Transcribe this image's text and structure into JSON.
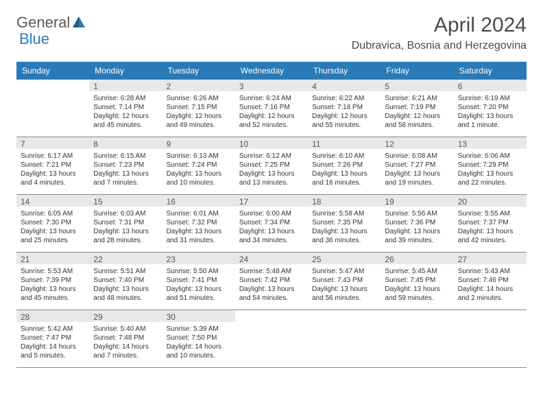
{
  "brand": {
    "name_part1": "General",
    "name_part2": "Blue",
    "color_primary": "#2a7ab8",
    "color_text": "#5a5a5a"
  },
  "title": "April 2024",
  "location": "Dubravica, Bosnia and Herzegovina",
  "header_bg": "#2a7ab8",
  "day_bg": "#e8e8e8",
  "dayNames": [
    "Sunday",
    "Monday",
    "Tuesday",
    "Wednesday",
    "Thursday",
    "Friday",
    "Saturday"
  ],
  "weeks": [
    [
      null,
      {
        "n": "1",
        "sr": "6:28 AM",
        "ss": "7:14 PM",
        "dl": "12 hours and 45 minutes."
      },
      {
        "n": "2",
        "sr": "6:26 AM",
        "ss": "7:15 PM",
        "dl": "12 hours and 49 minutes."
      },
      {
        "n": "3",
        "sr": "6:24 AM",
        "ss": "7:16 PM",
        "dl": "12 hours and 52 minutes."
      },
      {
        "n": "4",
        "sr": "6:22 AM",
        "ss": "7:18 PM",
        "dl": "12 hours and 55 minutes."
      },
      {
        "n": "5",
        "sr": "6:21 AM",
        "ss": "7:19 PM",
        "dl": "12 hours and 58 minutes."
      },
      {
        "n": "6",
        "sr": "6:19 AM",
        "ss": "7:20 PM",
        "dl": "13 hours and 1 minute."
      }
    ],
    [
      {
        "n": "7",
        "sr": "6:17 AM",
        "ss": "7:21 PM",
        "dl": "13 hours and 4 minutes."
      },
      {
        "n": "8",
        "sr": "6:15 AM",
        "ss": "7:23 PM",
        "dl": "13 hours and 7 minutes."
      },
      {
        "n": "9",
        "sr": "6:13 AM",
        "ss": "7:24 PM",
        "dl": "13 hours and 10 minutes."
      },
      {
        "n": "10",
        "sr": "6:12 AM",
        "ss": "7:25 PM",
        "dl": "13 hours and 13 minutes."
      },
      {
        "n": "11",
        "sr": "6:10 AM",
        "ss": "7:26 PM",
        "dl": "13 hours and 16 minutes."
      },
      {
        "n": "12",
        "sr": "6:08 AM",
        "ss": "7:27 PM",
        "dl": "13 hours and 19 minutes."
      },
      {
        "n": "13",
        "sr": "6:06 AM",
        "ss": "7:29 PM",
        "dl": "13 hours and 22 minutes."
      }
    ],
    [
      {
        "n": "14",
        "sr": "6:05 AM",
        "ss": "7:30 PM",
        "dl": "13 hours and 25 minutes."
      },
      {
        "n": "15",
        "sr": "6:03 AM",
        "ss": "7:31 PM",
        "dl": "13 hours and 28 minutes."
      },
      {
        "n": "16",
        "sr": "6:01 AM",
        "ss": "7:32 PM",
        "dl": "13 hours and 31 minutes."
      },
      {
        "n": "17",
        "sr": "6:00 AM",
        "ss": "7:34 PM",
        "dl": "13 hours and 34 minutes."
      },
      {
        "n": "18",
        "sr": "5:58 AM",
        "ss": "7:35 PM",
        "dl": "13 hours and 36 minutes."
      },
      {
        "n": "19",
        "sr": "5:56 AM",
        "ss": "7:36 PM",
        "dl": "13 hours and 39 minutes."
      },
      {
        "n": "20",
        "sr": "5:55 AM",
        "ss": "7:37 PM",
        "dl": "13 hours and 42 minutes."
      }
    ],
    [
      {
        "n": "21",
        "sr": "5:53 AM",
        "ss": "7:39 PM",
        "dl": "13 hours and 45 minutes."
      },
      {
        "n": "22",
        "sr": "5:51 AM",
        "ss": "7:40 PM",
        "dl": "13 hours and 48 minutes."
      },
      {
        "n": "23",
        "sr": "5:50 AM",
        "ss": "7:41 PM",
        "dl": "13 hours and 51 minutes."
      },
      {
        "n": "24",
        "sr": "5:48 AM",
        "ss": "7:42 PM",
        "dl": "13 hours and 54 minutes."
      },
      {
        "n": "25",
        "sr": "5:47 AM",
        "ss": "7:43 PM",
        "dl": "13 hours and 56 minutes."
      },
      {
        "n": "26",
        "sr": "5:45 AM",
        "ss": "7:45 PM",
        "dl": "13 hours and 59 minutes."
      },
      {
        "n": "27",
        "sr": "5:43 AM",
        "ss": "7:46 PM",
        "dl": "14 hours and 2 minutes."
      }
    ],
    [
      {
        "n": "28",
        "sr": "5:42 AM",
        "ss": "7:47 PM",
        "dl": "14 hours and 5 minutes."
      },
      {
        "n": "29",
        "sr": "5:40 AM",
        "ss": "7:48 PM",
        "dl": "14 hours and 7 minutes."
      },
      {
        "n": "30",
        "sr": "5:39 AM",
        "ss": "7:50 PM",
        "dl": "14 hours and 10 minutes."
      },
      null,
      null,
      null,
      null
    ]
  ],
  "labels": {
    "sunrise": "Sunrise:",
    "sunset": "Sunset:",
    "daylight": "Daylight:"
  }
}
